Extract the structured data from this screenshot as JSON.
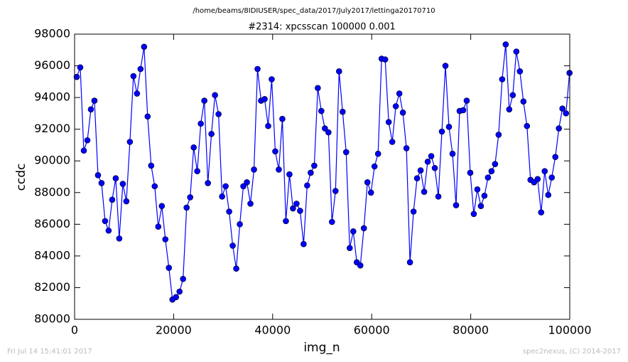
{
  "chart_data": {
    "type": "line",
    "suptitle": "/home/beams/8IDIUSER/spec_data/2017/July2017/lettinga20170710",
    "title": "#2314: xpcsscan 100000 0.001",
    "xlabel": "img_n",
    "ylabel": "ccdc",
    "footer_left": "Fri Jul 14 15:41:01 2017",
    "footer_right": "spec2nexus, (C) 2014-2017",
    "color": "#0000ff",
    "marker": true,
    "grid": false,
    "xlim": [
      0,
      100000
    ],
    "xticks": [
      0,
      20000,
      40000,
      60000,
      80000,
      100000
    ],
    "ylim": [
      80000,
      98000
    ],
    "yticks": [
      80000,
      82000,
      84000,
      86000,
      88000,
      90000,
      92000,
      94000,
      96000,
      98000
    ],
    "x": [
      430,
      1146,
      1862,
      2578,
      3294,
      4010,
      4726,
      5442,
      6158,
      6874,
      7590,
      8306,
      9022,
      9738,
      10454,
      11170,
      11886,
      12602,
      13318,
      14034,
      14750,
      15466,
      16182,
      16898,
      17614,
      18330,
      19046,
      19762,
      20478,
      21194,
      21910,
      22626,
      23342,
      24058,
      24774,
      25490,
      26206,
      26922,
      27638,
      28354,
      29070,
      29786,
      30502,
      31218,
      31934,
      32650,
      33366,
      34082,
      34798,
      35514,
      36230,
      36946,
      37662,
      38378,
      39094,
      39810,
      40526,
      41242,
      41958,
      42674,
      43390,
      44106,
      44822,
      45538,
      46254,
      46970,
      47686,
      48402,
      49118,
      49834,
      50550,
      51266,
      51982,
      52698,
      53414,
      54130,
      54846,
      55562,
      56278,
      56994,
      57710,
      58426,
      59142,
      59858,
      60574,
      61290,
      62006,
      62722,
      63438,
      64154,
      64870,
      65586,
      66302,
      67018,
      67734,
      68450,
      69166,
      69882,
      70598,
      71314,
      72030,
      72746,
      73462,
      74178,
      74894,
      75610,
      76326,
      77042,
      77758,
      78474,
      79190,
      79906,
      80622,
      81338,
      82054,
      82770,
      83486,
      84202,
      84918,
      85634,
      86350,
      87066,
      87782,
      88498,
      89214,
      89930,
      90646,
      91362,
      92078,
      92794,
      93510,
      94226,
      94942,
      95658,
      96374,
      97090,
      97806,
      98522,
      99238,
      99954
    ],
    "values": [
      95300,
      95900,
      90650,
      91300,
      93250,
      93800,
      89100,
      88600,
      86200,
      85600,
      87550,
      88900,
      85100,
      88550,
      87450,
      91200,
      95350,
      94250,
      95800,
      97200,
      92800,
      89700,
      88400,
      85850,
      87150,
      85050,
      83250,
      81250,
      81400,
      81750,
      82550,
      87050,
      87700,
      90850,
      89350,
      92350,
      93800,
      88600,
      91700,
      94150,
      92950,
      87750,
      88400,
      86800,
      84650,
      83200,
      86000,
      88400,
      88650,
      87300,
      89450,
      95800,
      93800,
      93900,
      92200,
      95150,
      90600,
      89450,
      92650,
      86200,
      89150,
      87000,
      87300,
      86850,
      84750,
      88450,
      89250,
      89700,
      94600,
      93150,
      92050,
      91800,
      86150,
      88100,
      95650,
      93100,
      90550,
      84500,
      85550,
      83600,
      83400,
      85750,
      88650,
      88000,
      89650,
      90450,
      96450,
      96400,
      92450,
      91200,
      93450,
      94250,
      93050,
      90800,
      83600,
      86800,
      88900,
      89400,
      88050,
      89950,
      90300,
      89550,
      87750,
      91850,
      96000,
      92150,
      90450,
      87200,
      93150,
      93200,
      93800,
      89250,
      86650,
      88200,
      87150,
      87800,
      88950,
      89350,
      89800,
      91650,
      95150,
      97350,
      93250,
      94150,
      96900,
      95650,
      93750,
      92200,
      88800,
      88650,
      88850,
      86750,
      89350,
      87850,
      88950,
      90250,
      92050,
      93300,
      93000,
      95550
    ]
  }
}
